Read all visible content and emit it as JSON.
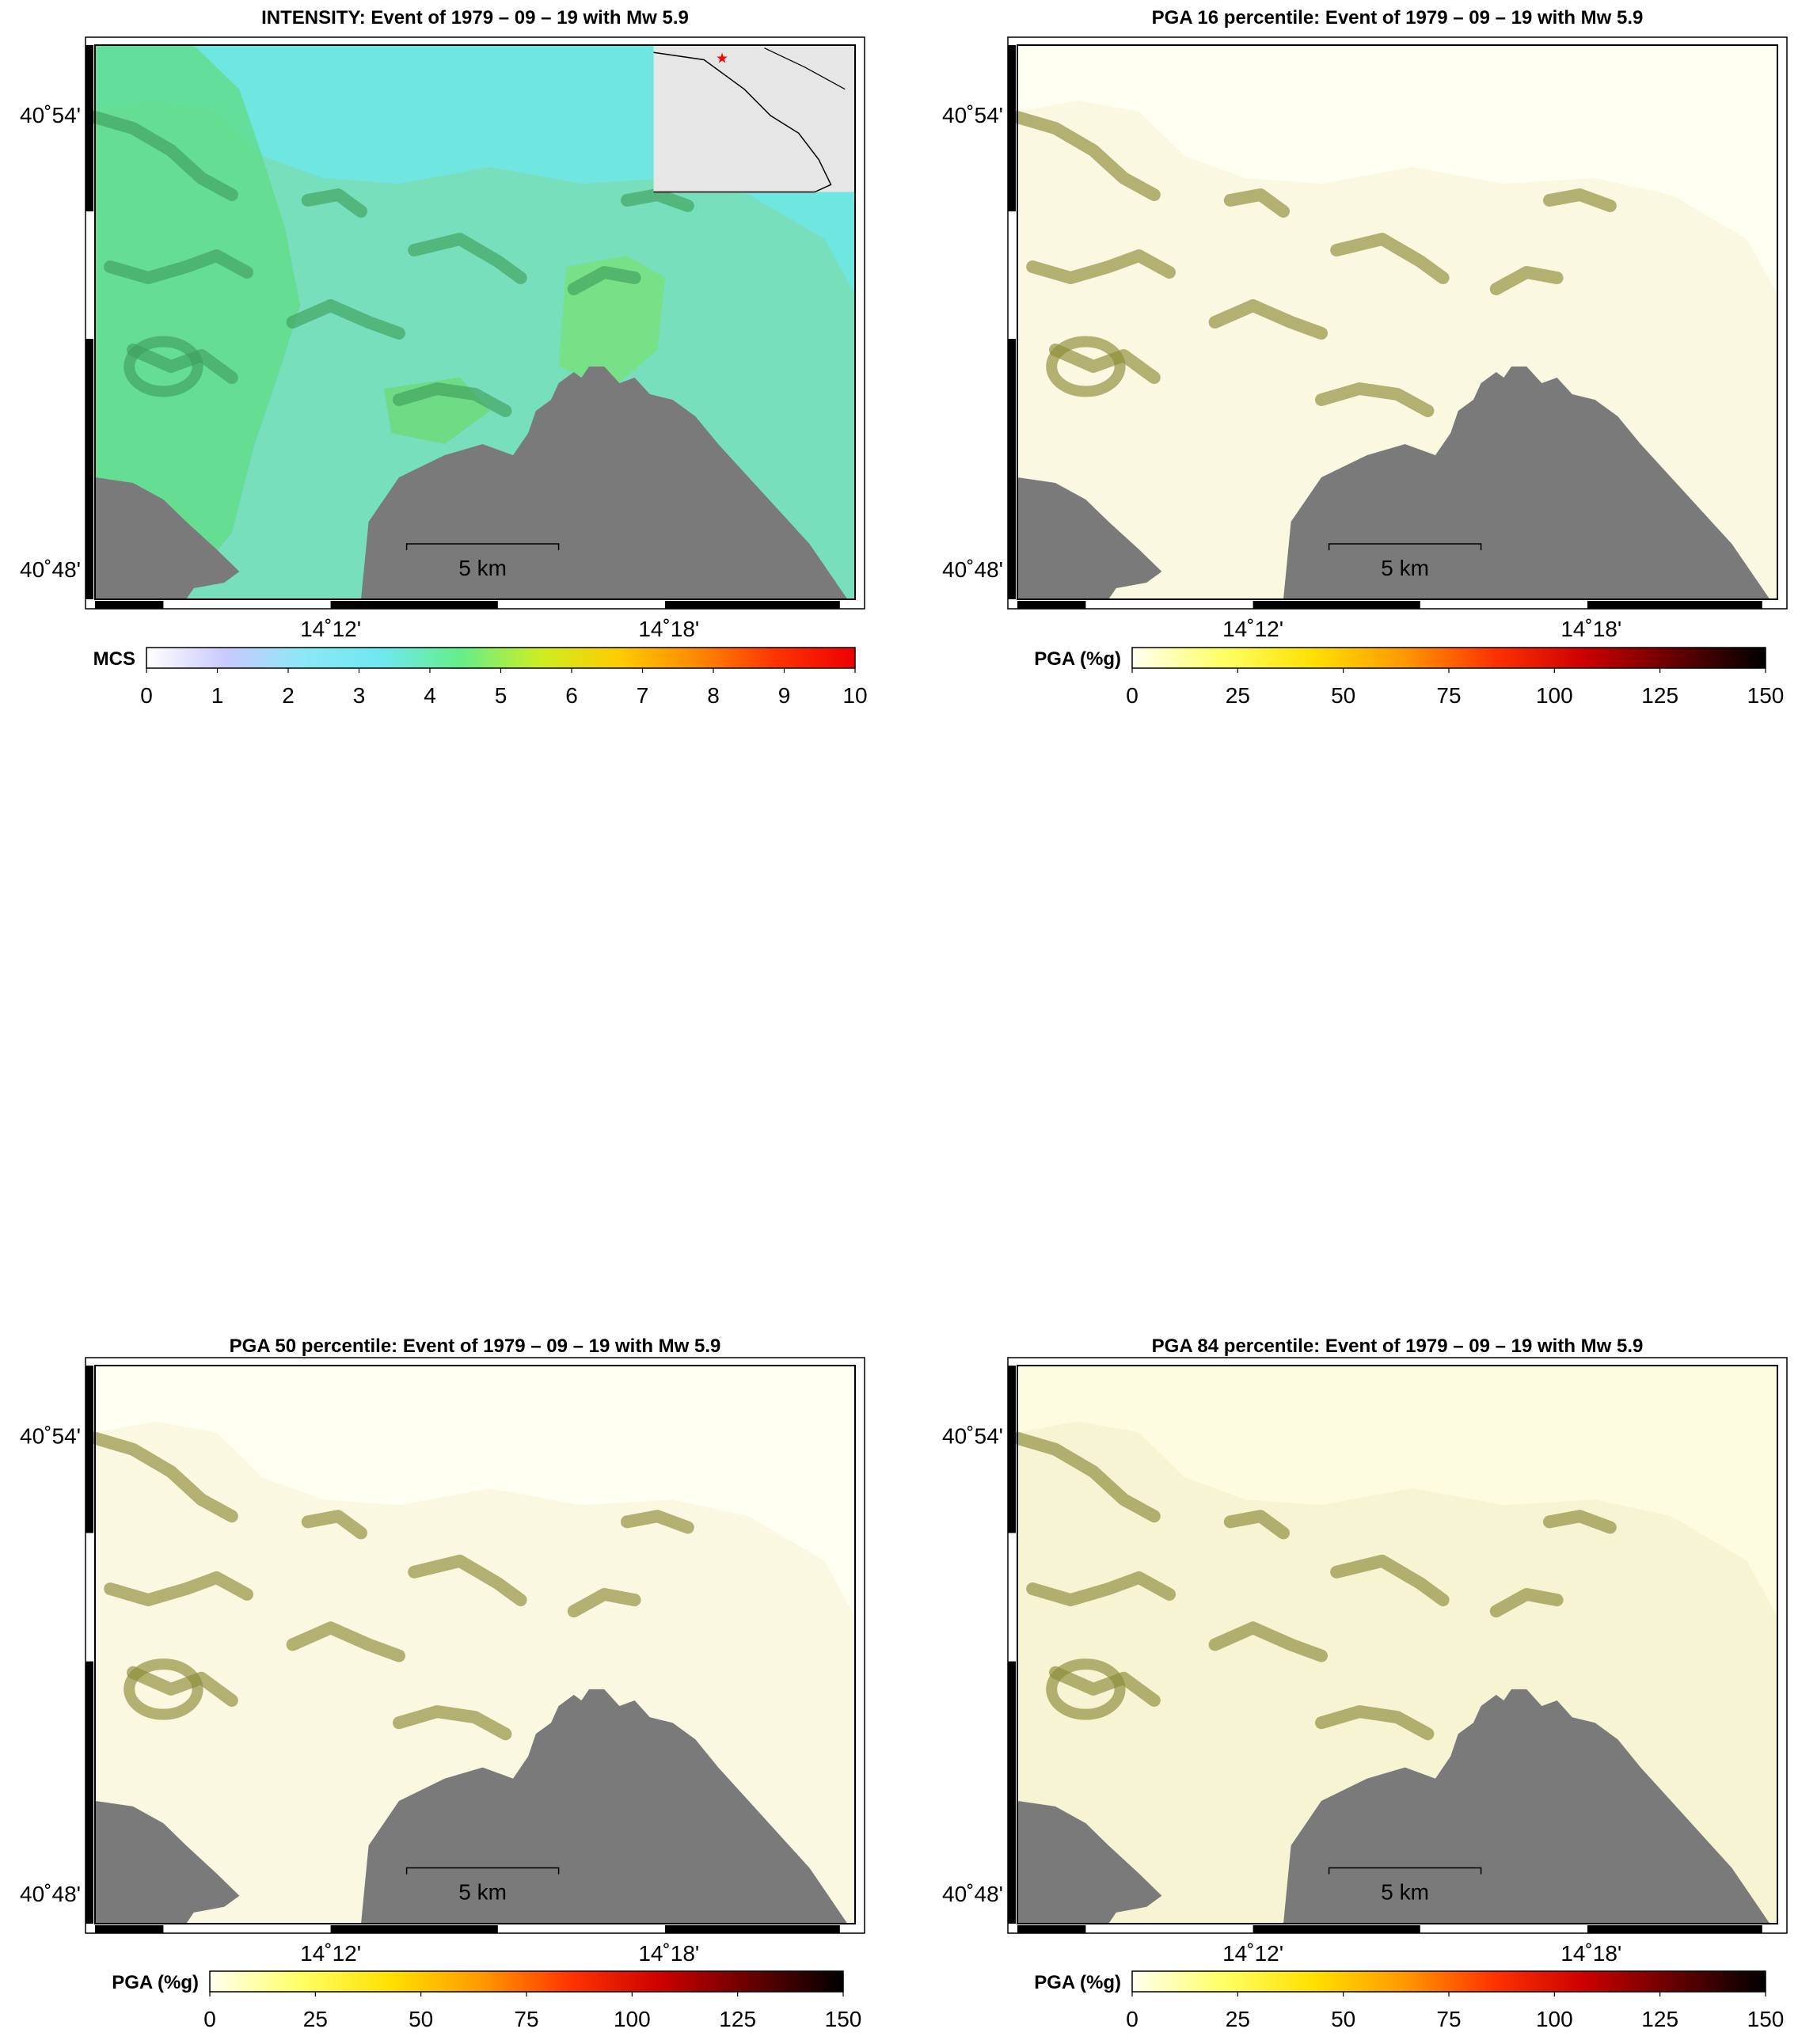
{
  "panels": [
    {
      "id": "intensity",
      "title": "INTENSITY: Event of 1979 – 09 – 19 with Mw 5.9",
      "lat_labels": [
        "40˚54'",
        "40˚48'"
      ],
      "lon_labels": [
        "14˚12'",
        "14˚18'"
      ],
      "scale_label": "5 km",
      "colorbar": {
        "label": "MCS",
        "ticks": [
          "0",
          "1",
          "2",
          "3",
          "4",
          "5",
          "6",
          "7",
          "8",
          "9",
          "10"
        ],
        "stops": [
          "#ffffff",
          "#c9c9ff",
          "#8ce8f5",
          "#6ee8ef",
          "#66ee88",
          "#ccee22",
          "#ffcc00",
          "#ff8800",
          "#ff3300",
          "#ee0000"
        ]
      },
      "palette": {
        "terrain": "#7fd8a0",
        "ridge": "#3f9f5a",
        "sea": "#6fe6e0",
        "land_mask": "#7a7a7a"
      },
      "inset": true
    },
    {
      "id": "pga16",
      "title": "PGA 16 percentile: Event of 1979 – 09 – 19 with Mw 5.9",
      "lat_labels": [
        "40˚54'",
        "40˚48'"
      ],
      "lon_labels": [
        "14˚12'",
        "14˚18'"
      ],
      "scale_label": "5 km",
      "colorbar": {
        "label": "PGA (%g)",
        "ticks": [
          "0",
          "25",
          "50",
          "75",
          "100",
          "125",
          "150"
        ],
        "stops": [
          "#fffff0",
          "#ffff66",
          "#ffe000",
          "#ff9900",
          "#ff3300",
          "#cc0000",
          "#660000",
          "#000000"
        ]
      },
      "palette": {
        "terrain": "#f6f3d6",
        "ridge": "#8c8a35",
        "sea": "#fffff2",
        "land_mask": "#7a7a7a"
      },
      "inset": false
    },
    {
      "id": "pga50",
      "title": "PGA 50 percentile: Event of 1979 – 09 – 19 with Mw 5.9",
      "lat_labels": [
        "40˚54'",
        "40˚48'"
      ],
      "lon_labels": [
        "14˚12'",
        "14˚18'"
      ],
      "scale_label": "5 km",
      "colorbar": {
        "label": "PGA (%g)",
        "ticks": [
          "0",
          "25",
          "50",
          "75",
          "100",
          "125",
          "150"
        ],
        "stops": [
          "#fffff0",
          "#ffff66",
          "#ffe000",
          "#ff9900",
          "#ff3300",
          "#cc0000",
          "#660000",
          "#000000"
        ]
      },
      "palette": {
        "terrain": "#f6f3d6",
        "ridge": "#8c8a35",
        "sea": "#fffff2",
        "land_mask": "#7a7a7a"
      },
      "inset": false
    },
    {
      "id": "pga84",
      "title": "PGA 84 percentile: Event of 1979 – 09 – 19 with Mw 5.9",
      "lat_labels": [
        "40˚54'",
        "40˚48'"
      ],
      "lon_labels": [
        "14˚12'",
        "14˚18'"
      ],
      "scale_label": "5 km",
      "colorbar": {
        "label": "PGA (%g)",
        "ticks": [
          "0",
          "25",
          "50",
          "75",
          "100",
          "125",
          "150"
        ],
        "stops": [
          "#fffff0",
          "#ffff66",
          "#ffe000",
          "#ff9900",
          "#ff3300",
          "#cc0000",
          "#660000",
          "#000000"
        ]
      },
      "palette": {
        "terrain": "#f3f0cc",
        "ridge": "#8c8a35",
        "sea": "#fdfbe0",
        "land_mask": "#7a7a7a"
      },
      "inset": false
    }
  ]
}
